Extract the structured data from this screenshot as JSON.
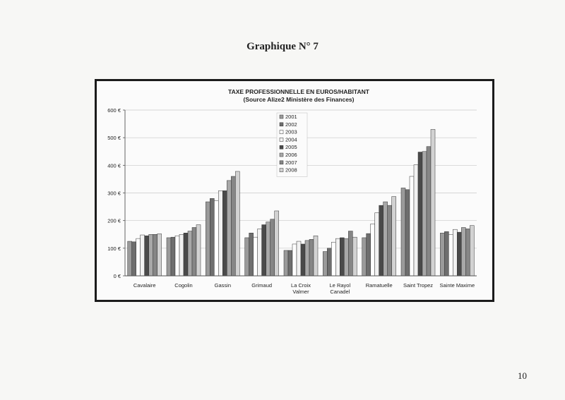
{
  "page": {
    "heading": "Graphique N° 7",
    "page_number": "10"
  },
  "chart_data": {
    "type": "bar",
    "title": "TAXE PROFESSIONNELLE EN EUROS/HABITANT",
    "subtitle": "(Source Alize2 Ministère des Finances)",
    "xlabel": "",
    "ylabel": "",
    "ylim": [
      0,
      600
    ],
    "yticks": [
      0,
      100,
      200,
      300,
      400,
      500,
      600
    ],
    "ytick_labels": [
      "0 €",
      "100 €",
      "200 €",
      "300 €",
      "400 €",
      "500 €",
      "600 €"
    ],
    "grid": true,
    "legend_position": "top-center",
    "categories": [
      "Cavalaire",
      "Cogolin",
      "Gassin",
      "Grimaud",
      "La Croix Valmer",
      "Le Rayol Canadel",
      "Ramatuelle",
      "Saint Tropez",
      "Sainte Maxime"
    ],
    "series": [
      {
        "name": "2001",
        "color": "#9a9a9a",
        "values": [
          125,
          138,
          268,
          138,
          92,
          88,
          138,
          318,
          155
        ]
      },
      {
        "name": "2002",
        "color": "#6e6e6e",
        "values": [
          123,
          140,
          280,
          155,
          92,
          100,
          153,
          312,
          160
        ]
      },
      {
        "name": "2003",
        "color": "#ffffff",
        "values": [
          135,
          145,
          272,
          140,
          115,
          122,
          188,
          360,
          150
        ]
      },
      {
        "name": "2004",
        "color": "#f2f2f2",
        "values": [
          148,
          150,
          308,
          170,
          125,
          135,
          228,
          402,
          168
        ]
      },
      {
        "name": "2005",
        "color": "#4a4a4a",
        "values": [
          145,
          155,
          308,
          185,
          115,
          138,
          255,
          448,
          158
        ]
      },
      {
        "name": "2006",
        "color": "#a8a8a8",
        "values": [
          150,
          162,
          345,
          195,
          128,
          135,
          268,
          450,
          175
        ]
      },
      {
        "name": "2007",
        "color": "#868686",
        "values": [
          150,
          175,
          360,
          205,
          132,
          162,
          255,
          468,
          170
        ]
      },
      {
        "name": "2008",
        "color": "#d2d2d2",
        "values": [
          152,
          185,
          378,
          235,
          145,
          140,
          287,
          530,
          182
        ]
      }
    ]
  }
}
